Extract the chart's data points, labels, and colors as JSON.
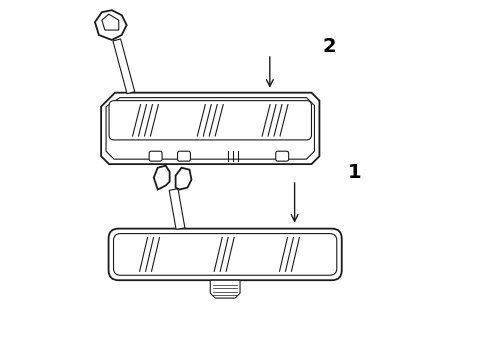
{
  "background_color": "#ffffff",
  "line_color": "#1a1a1a",
  "label_color": "#000000",
  "fig_width": 4.9,
  "fig_height": 3.6,
  "dpi": 100,
  "mirror1_label": "1",
  "mirror2_label": "2",
  "label_fontsize": 14
}
